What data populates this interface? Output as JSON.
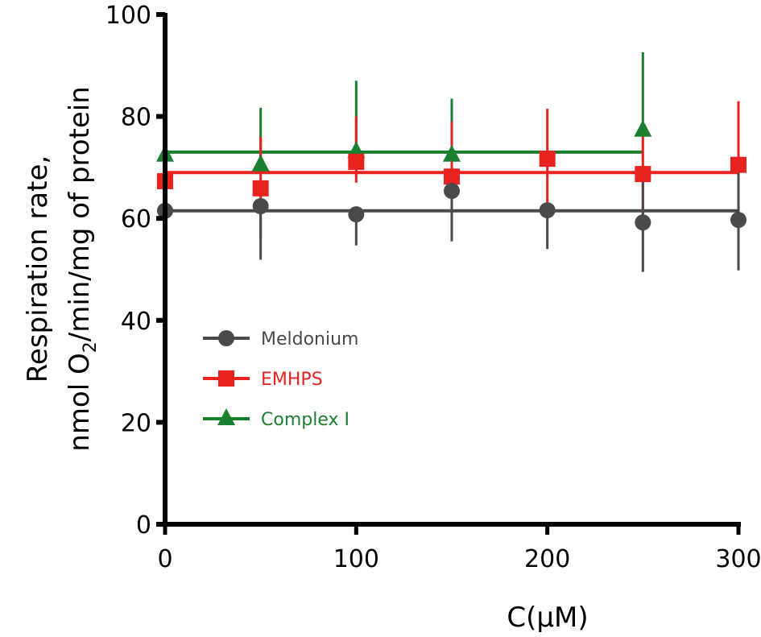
{
  "chart_data": {
    "type": "scatter",
    "title": "",
    "xlabel": "C(μM)",
    "ylabel_line1": "Respiration rate,",
    "ylabel_line2_pre": "nmol O",
    "ylabel_line2_sub": "2",
    "ylabel_line2_post": "/min/mg of protein",
    "xlim": [
      0,
      300
    ],
    "ylim": [
      0,
      100
    ],
    "x_ticks": [
      "0",
      "100",
      "200",
      "300"
    ],
    "y_ticks": [
      "0",
      "20",
      "40",
      "60",
      "80",
      "100"
    ],
    "legend_position": "center-left",
    "series": [
      {
        "name": "Meldonium",
        "color": "#4a4a4a",
        "marker": "circle",
        "x": [
          0,
          50,
          100,
          150,
          200,
          250,
          300
        ],
        "y": [
          61.5,
          62.4,
          60.8,
          65.4,
          61.6,
          59.2,
          59.7
        ],
        "err_low": [
          52.4,
          51.9,
          54.7,
          55.5,
          54.0,
          49.5,
          49.8
        ],
        "err_high": [
          61.5,
          62.4,
          60.8,
          69.5,
          61.6,
          68.5,
          70.0
        ],
        "fit": {
          "x": [
            0,
            300
          ],
          "y": [
            61.5,
            61.5
          ]
        }
      },
      {
        "name": "EMHPS",
        "color": "#e8231f",
        "marker": "square",
        "x": [
          0,
          50,
          100,
          150,
          200,
          250,
          300
        ],
        "y": [
          67.3,
          65.9,
          71.1,
          68.2,
          71.7,
          68.7,
          70.5
        ],
        "err_low": [
          60.0,
          56.0,
          67.0,
          57.0,
          62.0,
          60.0,
          62.0
        ],
        "err_high": [
          75.5,
          76.0,
          80.0,
          79.0,
          81.5,
          78.0,
          83.0
        ],
        "fit": {
          "x": [
            0,
            300
          ],
          "y": [
            69.0,
            69.0
          ]
        }
      },
      {
        "name": "Complex I",
        "color": "#1a7f2e",
        "marker": "triangle",
        "x": [
          0,
          50,
          100,
          150,
          250
        ],
        "y": [
          72.4,
          70.5,
          73.1,
          72.4,
          77.3
        ],
        "err_low": [
          72.4,
          70.5,
          73.1,
          72.4,
          77.3
        ],
        "err_high": [
          84.0,
          81.7,
          87.0,
          83.5,
          92.6
        ],
        "fit": {
          "x": [
            0,
            250
          ],
          "y": [
            73.0,
            73.0
          ]
        }
      }
    ]
  }
}
